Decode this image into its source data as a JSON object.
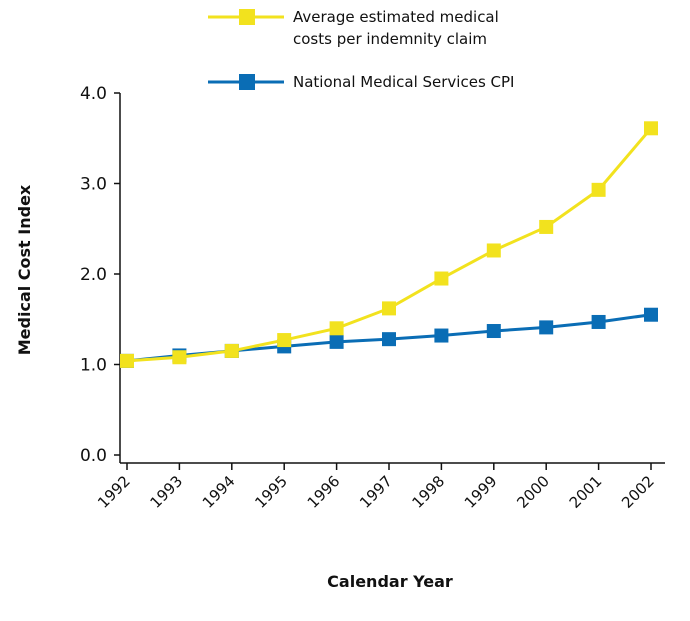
{
  "chart_data": {
    "type": "line",
    "x_label": "Calendar Year",
    "y_label": "Medical Cost Index",
    "categories": [
      "1992",
      "1993",
      "1994",
      "1995",
      "1996",
      "1997",
      "1998",
      "1999",
      "2000",
      "2001",
      "2002"
    ],
    "series": [
      {
        "name": "National Medical Services CPI",
        "color": "#0a6db5",
        "values": [
          1.04,
          1.1,
          1.15,
          1.2,
          1.25,
          1.28,
          1.32,
          1.37,
          1.41,
          1.47,
          1.55
        ]
      },
      {
        "name": "Average estimated medical costs per indemnity claim",
        "color": "#f2e21e",
        "values": [
          1.04,
          1.08,
          1.15,
          1.27,
          1.4,
          1.62,
          1.95,
          2.26,
          2.52,
          2.93,
          3.61
        ]
      }
    ],
    "ylim": [
      0,
      4
    ],
    "yticks": [
      {
        "value": 0,
        "label": "0.0"
      },
      {
        "value": 1,
        "label": "1.0"
      },
      {
        "value": 2,
        "label": "2.0"
      },
      {
        "value": 3,
        "label": "3.0"
      },
      {
        "value": 4,
        "label": "4.0"
      }
    ]
  }
}
